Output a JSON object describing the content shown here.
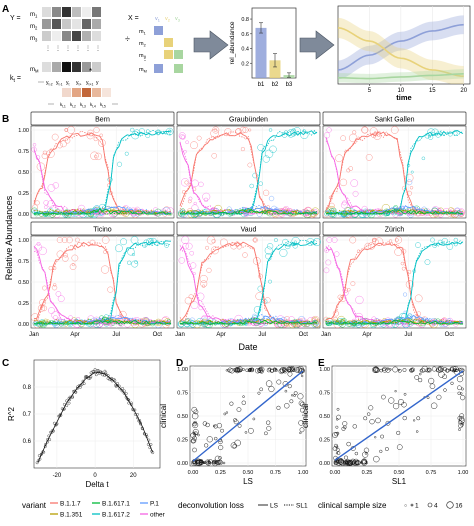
{
  "panel_letters": [
    "A",
    "B",
    "C",
    "D",
    "E"
  ],
  "colors": {
    "B.1.1.7": "#F8766D",
    "B.1.351": "#B79F00",
    "B.1.617.1": "#00BA38",
    "B.1.617.2": "#00BFC4",
    "P.1": "#619CFF",
    "other": "#F564E3",
    "regression": "#3366cc",
    "bar_b1": "#8ea0d8",
    "bar_b2": "#e8d27a",
    "bar_b3": "#a8d6a0",
    "arrow": "#7f8a9a"
  },
  "panelA": {
    "Y_label": "Y =",
    "X_label": "X =",
    "k_label": "k",
    "k_sub": "t",
    "m_labels": [
      "m",
      "m",
      "m",
      "m"
    ],
    "m_subs": [
      "1",
      "2",
      "3",
      "M"
    ],
    "y_labels": [
      "y",
      "y",
      "y",
      "y",
      "y",
      "y"
    ],
    "y_subs": [
      "t-2",
      "t-1",
      "t",
      "t+",
      "t+1",
      ""
    ],
    "k_row": [
      "k",
      "k",
      "k",
      "k",
      "k"
    ],
    "k_row_subs": [
      "t,1",
      "t,2",
      "t,3",
      "t,4",
      "t,5"
    ],
    "v_labels": [
      "v",
      "v",
      "v"
    ],
    "v_subs": [
      "1",
      "2",
      "3"
    ],
    "divider_sign": "÷",
    "star_sign": "*",
    "bar_chart": {
      "categories": [
        "b1",
        "b2",
        "b3"
      ],
      "values": [
        0.68,
        0.24,
        0.04
      ],
      "errors": [
        0.07,
        0.09,
        0.03
      ],
      "ylabel": "rel_abundance",
      "yticks": [
        "0.2",
        "0.4",
        "0.6",
        "0.8"
      ],
      "ylim": [
        0,
        0.95
      ]
    },
    "time_chart": {
      "xlabel": "time",
      "xticks": [
        "5",
        "10",
        "15",
        "20"
      ],
      "xlim": [
        0,
        21
      ],
      "ylim": [
        0,
        1
      ],
      "series": [
        {
          "color_key": "bar_b1",
          "x": [
            0,
            5,
            10,
            15,
            20
          ],
          "y": [
            0.18,
            0.37,
            0.55,
            0.68,
            0.76
          ],
          "band": 0.12
        },
        {
          "color_key": "bar_b2",
          "x": [
            0,
            5,
            10,
            15,
            20
          ],
          "y": [
            0.72,
            0.55,
            0.33,
            0.18,
            0.1
          ],
          "band": 0.13
        },
        {
          "color_key": "bar_b3",
          "x": [
            0,
            5,
            10,
            15,
            20
          ],
          "y": [
            0.08,
            0.07,
            0.09,
            0.11,
            0.13
          ],
          "band": 0.06
        }
      ]
    }
  },
  "panelB": {
    "ylabel": "Relative Abundances",
    "xlabel": "Date",
    "xticks": [
      "Jan",
      "Apr",
      "Jul",
      "Oct"
    ],
    "yticks": [
      "0.00",
      "0.25",
      "0.50",
      "0.75",
      "1.00"
    ],
    "facets": [
      "Bern",
      "Graubünden",
      "Sankt Gallen",
      "Ticino",
      "Vaud",
      "Zürich"
    ],
    "chart_data": {
      "type": "line",
      "x_domain_months": [
        0,
        10
      ],
      "y_domain": [
        0,
        1
      ],
      "series": [
        {
          "name": "B.1.1.7",
          "x": [
            0,
            0.8,
            1.5,
            2.5,
            3.5,
            4.5,
            5.2,
            5.6,
            6.0,
            6.5,
            7.5,
            10
          ],
          "y": [
            0.05,
            0.3,
            0.75,
            0.9,
            0.95,
            0.95,
            0.9,
            0.6,
            0.2,
            0.05,
            0.02,
            0.01
          ]
        },
        {
          "name": "B.1.617.2",
          "x": [
            0,
            4.5,
            5.4,
            5.8,
            6.2,
            6.8,
            7.5,
            10
          ],
          "y": [
            0.0,
            0.0,
            0.05,
            0.3,
            0.75,
            0.9,
            0.95,
            0.97
          ]
        },
        {
          "name": "other",
          "x": [
            0,
            0.6,
            1.2,
            2.0,
            3.0,
            5.0,
            8.0,
            10
          ],
          "y": [
            0.9,
            0.65,
            0.25,
            0.08,
            0.03,
            0.02,
            0.02,
            0.01
          ]
        },
        {
          "name": "B.1.351",
          "x": [
            0,
            2,
            4,
            5.5,
            7,
            10
          ],
          "y": [
            0.01,
            0.02,
            0.03,
            0.04,
            0.02,
            0.01
          ]
        },
        {
          "name": "P.1",
          "x": [
            0,
            3,
            5,
            6,
            8,
            10
          ],
          "y": [
            0.0,
            0.01,
            0.05,
            0.08,
            0.02,
            0.01
          ]
        },
        {
          "name": "B.1.617.1",
          "x": [
            0,
            4,
            5,
            6,
            10
          ],
          "y": [
            0.0,
            0.0,
            0.04,
            0.02,
            0.0
          ]
        }
      ]
    }
  },
  "panelC": {
    "ylabel": "R^2",
    "xlabel": "Delta t",
    "yticks": [
      "0.6",
      "0.7",
      "0.8"
    ],
    "xticks": [
      "-20",
      "0",
      "20"
    ],
    "chart_data": {
      "type": "line",
      "x": [
        -30,
        -25,
        -20,
        -15,
        -10,
        -5,
        0,
        5,
        10,
        15,
        20,
        25,
        30
      ],
      "y": [
        0.52,
        0.6,
        0.67,
        0.74,
        0.79,
        0.83,
        0.855,
        0.85,
        0.82,
        0.78,
        0.72,
        0.65,
        0.56
      ],
      "xlim": [
        -32,
        34
      ],
      "ylim": [
        0.5,
        0.9
      ]
    }
  },
  "panelD": {
    "ylabel": "clinical",
    "xlabel": "LS",
    "ticks": [
      "0.00",
      "0.25",
      "0.50",
      "0.75",
      "1.00"
    ],
    "chart_data": {
      "type": "scatter",
      "xlim": [
        0,
        1
      ],
      "ylim": [
        0,
        1
      ],
      "trend": [
        [
          0,
          0.02
        ],
        [
          1,
          0.98
        ]
      ]
    }
  },
  "panelE": {
    "ylabel": "clinical",
    "xlabel": "SL1",
    "ticks": [
      "0.00",
      "0.25",
      "0.50",
      "0.75",
      "1.00"
    ],
    "chart_data": {
      "type": "scatter",
      "xlim": [
        0,
        1
      ],
      "ylim": [
        0,
        1
      ],
      "trend": [
        [
          0,
          0.03
        ],
        [
          1,
          0.98
        ]
      ]
    }
  },
  "legend": {
    "variant_title": "variant",
    "variants": [
      "B.1.1.7",
      "B.1.617.1",
      "P.1",
      "B.1.351",
      "B.1.617.2",
      "other"
    ],
    "loss_title": "deconvolution loss",
    "loss_items": [
      "LS",
      "SL1"
    ],
    "size_title": "clinical sample size",
    "size_items": [
      "1",
      "4",
      "16"
    ]
  }
}
